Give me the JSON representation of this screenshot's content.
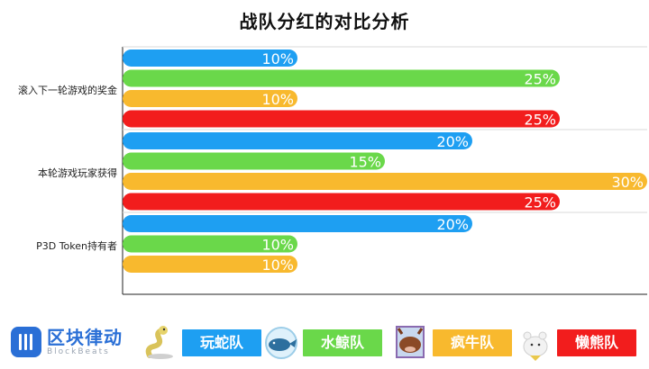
{
  "chart_data": {
    "type": "bar",
    "orientation": "horizontal",
    "title": "战队分红的对比分析",
    "categories": [
      "滚入下一轮游戏的奖金",
      "本轮游戏玩家获得",
      "P3D Token持有者"
    ],
    "series": [
      {
        "name": "玩蛇队",
        "color": "#1e9ff2",
        "values": [
          10,
          20,
          20
        ]
      },
      {
        "name": "水鲸队",
        "color": "#6ad84a",
        "values": [
          25,
          15,
          10
        ]
      },
      {
        "name": "疯牛队",
        "color": "#f8b92e",
        "values": [
          10,
          30,
          10
        ]
      },
      {
        "name": "懒熊队",
        "color": "#f21d1d",
        "values": [
          25,
          25,
          null
        ]
      }
    ],
    "value_labels": [
      [
        "10%",
        "25%",
        "10%",
        "25%"
      ],
      [
        "20%",
        "15%",
        "30%",
        "25%"
      ],
      [
        "20%",
        "10%",
        "10%",
        null
      ]
    ],
    "xlim": [
      0,
      30
    ],
    "grid": "horizontal separators between categories",
    "legend": "bottom"
  },
  "footer": {
    "brand_cn": "区块律动",
    "brand_en": "BlockBeats",
    "legend": [
      {
        "label": "玩蛇队",
        "color": "#1e9ff2",
        "mascot": "snake-mascot-icon"
      },
      {
        "label": "水鲸队",
        "color": "#6ad84a",
        "mascot": "whale-mascot-icon"
      },
      {
        "label": "疯牛队",
        "color": "#f8b92e",
        "mascot": "bull-mascot-icon"
      },
      {
        "label": "懒熊队",
        "color": "#f21d1d",
        "mascot": "bear-mascot-icon"
      }
    ]
  }
}
